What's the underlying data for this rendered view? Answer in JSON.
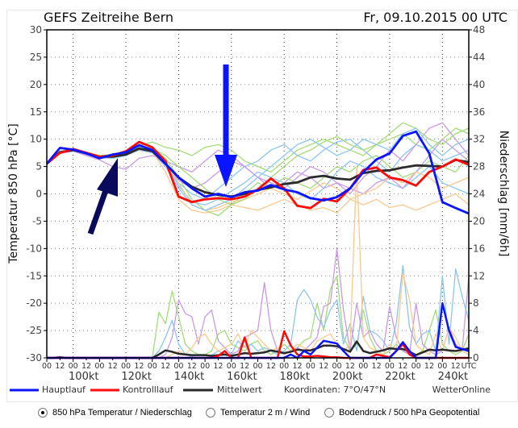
{
  "header": {
    "title": "GEFS Zeitreihe Bern",
    "run": "Fr, 09.10.2015 00 UTC"
  },
  "legend": {
    "main": "Hauptlauf",
    "control": "Kontrolllauf",
    "mean": "Mittelwert",
    "coords": "Koordinaten:  7°O/47°N",
    "brand": "WetterOnline"
  },
  "colors": {
    "main": "#0a14ff",
    "control": "#ff0a0a",
    "mean": "#2a2a2a",
    "arrow_blue": "#0a14ff",
    "arrow_navy": "#0a0a5a"
  },
  "radios": [
    {
      "label": "850 hPa Temperatur / Niederschlag",
      "selected": true
    },
    {
      "label": "Temperatur 2 m / Wind",
      "selected": false
    },
    {
      "label": "Bodendruck / 500 hPa Geopotential",
      "selected": false
    }
  ],
  "chart_data": {
    "type": "line",
    "title": "GEFS Zeitreihe Bern",
    "ylabel": "Temperatur 850 hPa [°C]",
    "y2label": "Niederschlag [mm/6h]",
    "ylim": [
      -30,
      30
    ],
    "y2lim": [
      0,
      48
    ],
    "yticks": [
      "30",
      "25",
      "20",
      "15",
      "10",
      "5",
      "0",
      "-5",
      "-10",
      "-15",
      "-20",
      "-25",
      "-30"
    ],
    "y2ticks": [
      "48",
      "44",
      "40",
      "36",
      "32",
      "28",
      "24",
      "20",
      "16",
      "12",
      "8",
      "4",
      "0"
    ],
    "xlim_days": [
      0,
      16
    ],
    "xticks_hours": [
      "00",
      "12"
    ],
    "x_end_label": "UTC",
    "wind_labels": [
      "100kt",
      "120kt",
      "140kt",
      "160kt",
      "180kt",
      "200kt",
      "220kt",
      "240kt"
    ],
    "x_step_days": 0.5,
    "temperature": {
      "main": [
        5.5,
        8.4,
        8.1,
        7.4,
        6.5,
        7.2,
        7.6,
        8.9,
        8.0,
        5.5,
        3.0,
        1.0,
        -0.5,
        0,
        -0.6,
        0.3,
        0.6,
        1.6,
        0.8,
        0.3,
        -0.8,
        -1.2,
        -0.6,
        1.0,
        4.0,
        6.3,
        7.4,
        10.6,
        11.4,
        7.4,
        -1.5,
        -2.6,
        -3.6
      ],
      "control": [
        5.5,
        7.5,
        8.2,
        7.5,
        6.8,
        7.0,
        7.8,
        9.5,
        8.5,
        6.0,
        -0.5,
        -1.5,
        -1.0,
        -0.8,
        -1.0,
        -0.5,
        0.8,
        2.8,
        1.0,
        -2.2,
        -2.6,
        -0.9,
        -1.4,
        1.0,
        4.4,
        4.8,
        3.0,
        2.5,
        1.5,
        4.0,
        5.0,
        6.3,
        5.3
      ],
      "mean": [
        5.5,
        7.6,
        8.0,
        7.4,
        6.8,
        6.8,
        7.2,
        8.3,
        7.8,
        5.5,
        3.0,
        1.3,
        0.3,
        -0.2,
        -0.5,
        0,
        0.7,
        1.2,
        1.8,
        2.1,
        3.0,
        3.3,
        2.8,
        2.6,
        3.8,
        4.2,
        4.3,
        4.8,
        5.2,
        5.1,
        5.0,
        6.2,
        5.8
      ],
      "members": [
        {
          "color": "#a3dc78",
          "values": [
            5.5,
            7.8,
            8.2,
            7.6,
            7.0,
            7.2,
            7.6,
            8.8,
            9.5,
            8.5,
            8.0,
            7.0,
            8.5,
            9.0,
            8.0,
            6.0,
            5.0,
            4.0,
            6.0,
            8.0,
            9.0,
            10.0,
            9.0,
            8.0,
            7.0,
            9.0,
            10.0,
            11.0,
            9.0,
            8.0,
            10.0,
            12.0,
            11.0
          ]
        },
        {
          "color": "#8cc6f0",
          "values": [
            5.5,
            7.5,
            7.9,
            7.2,
            6.6,
            6.5,
            7.0,
            8.0,
            7.5,
            5.0,
            2.0,
            0,
            -1.0,
            1.0,
            3.0,
            5.0,
            6.0,
            8.0,
            9.0,
            7.0,
            6.0,
            8.0,
            9.5,
            10.0,
            8.0,
            6.0,
            4.0,
            7.0,
            9.0,
            8.0,
            6.0,
            7.0,
            8.0
          ]
        },
        {
          "color": "#c99ae6",
          "values": [
            5.5,
            7.4,
            7.8,
            7.0,
            6.2,
            5.0,
            4.5,
            6.5,
            7.0,
            6.0,
            5.0,
            4.0,
            6.0,
            8.0,
            7.0,
            5.0,
            3.0,
            1.0,
            2.0,
            4.0,
            3.0,
            1.0,
            2.0,
            0,
            3.0,
            5.0,
            8.0,
            6.0,
            9.0,
            12.0,
            13.0,
            10.0,
            7.0
          ]
        },
        {
          "color": "#f9c98e",
          "values": [
            5.5,
            7.7,
            8.1,
            7.5,
            6.9,
            7.0,
            7.5,
            8.6,
            7.8,
            4.0,
            -1.0,
            -3.0,
            -3.5,
            -3.0,
            -2.0,
            -2.5,
            -3.0,
            -2.0,
            -1.0,
            -2.0,
            -3.0,
            -2.5,
            -3.5,
            -1.0,
            -2.0,
            -1.0,
            -2.5,
            -2.0,
            -3.0,
            -2.0,
            -1.0,
            0,
            -2.0
          ]
        },
        {
          "color": "#a3dc78",
          "values": [
            5.5,
            7.6,
            8.0,
            7.3,
            6.8,
            6.9,
            7.3,
            8.4,
            8.0,
            6.5,
            3.0,
            -1.0,
            -3.0,
            -4.0,
            -2.0,
            0,
            2.0,
            1.0,
            3.0,
            2.0,
            1.0,
            3.0,
            5.0,
            4.0,
            6.0,
            7.0,
            5.0,
            3.0,
            4.0,
            6.0,
            5.0,
            4.0,
            7.0
          ]
        },
        {
          "color": "#8cc6f0",
          "values": [
            5.5,
            7.6,
            8.0,
            7.3,
            6.7,
            6.6,
            7.0,
            8.2,
            7.6,
            5.5,
            1.5,
            -1.5,
            -2.0,
            -1.0,
            0.5,
            2.0,
            4.0,
            3.0,
            2.0,
            0,
            -1.0,
            1.0,
            4.0,
            6.0,
            5.0,
            3.0,
            2.0,
            1.0,
            3.0,
            5.0,
            2.0,
            1.0,
            0
          ]
        },
        {
          "color": "#c99ae6",
          "values": [
            5.5,
            7.7,
            8.0,
            7.4,
            6.6,
            6.8,
            7.1,
            8.1,
            7.7,
            5.5,
            2.5,
            1.0,
            2.0,
            4.0,
            6.0,
            5.0,
            3.0,
            2.0,
            1.0,
            3.0,
            5.0,
            4.0,
            2.0,
            1.0,
            0,
            2.0,
            3.0,
            1.0,
            4.0,
            7.0,
            10.0,
            8.0,
            6.0
          ]
        },
        {
          "color": "#f9c98e",
          "values": [
            5.5,
            7.6,
            7.9,
            7.3,
            6.7,
            6.8,
            7.2,
            8.3,
            7.9,
            5.8,
            2.0,
            -2.0,
            -3.0,
            -2.5,
            -1.5,
            -1.0,
            0,
            1.0,
            0,
            -1.0,
            0.5,
            2.0,
            1.0,
            -1.0,
            0,
            1.0,
            3.0,
            2.0,
            4.0,
            3.0,
            1.0,
            2.0,
            3.0
          ]
        },
        {
          "color": "#a3dc78",
          "values": [
            5.5,
            7.5,
            8.0,
            7.6,
            7.0,
            7.1,
            7.4,
            8.7,
            8.3,
            7.0,
            5.0,
            3.0,
            1.0,
            -1.0,
            -2.0,
            -1.0,
            1.0,
            3.0,
            5.0,
            7.0,
            8.0,
            9.5,
            10.5,
            9.0,
            8.0,
            9.0,
            11.0,
            13.0,
            12.0,
            10.0,
            9.0,
            11.0,
            12.0
          ]
        },
        {
          "color": "#8cc6f0",
          "values": [
            5.5,
            7.8,
            8.1,
            7.5,
            6.8,
            6.9,
            7.3,
            8.5,
            8.0,
            5.0,
            1.0,
            -2.0,
            -3.0,
            -2.0,
            -1.0,
            1.0,
            3.0,
            5.0,
            7.0,
            9.0,
            10.0,
            8.5,
            7.0,
            8.0,
            10.0,
            9.0,
            8.0,
            11.0,
            12.0,
            9.0,
            7.0,
            9.0,
            10.0
          ]
        }
      ]
    },
    "precip_step_days": 0.25,
    "precipitation": {
      "main": [
        0,
        0,
        0,
        0,
        0,
        0,
        0,
        0,
        0,
        0,
        0,
        0,
        0,
        0,
        0,
        0,
        0,
        0,
        0,
        0,
        0,
        0,
        0,
        0,
        0,
        0,
        0,
        0,
        0,
        0,
        0,
        0,
        0,
        0,
        0,
        0,
        0,
        0.5,
        0,
        1.0,
        0.5,
        1.5,
        2.5,
        2.3,
        2.1,
        1.0,
        0,
        0,
        0,
        0,
        0,
        0,
        0,
        1.0,
        2.3,
        1.0,
        0,
        0,
        0,
        0,
        8.0,
        4.0,
        1.6,
        1.3,
        1.0
      ],
      "control": [
        0,
        0,
        0,
        0,
        0,
        0,
        0,
        0,
        0,
        0,
        0,
        0,
        0,
        0,
        0,
        0,
        0,
        0,
        0,
        0,
        0,
        0,
        0,
        0,
        0,
        0,
        0.3,
        1.0,
        0,
        0,
        3.0,
        0,
        0,
        0,
        0,
        0,
        3.9,
        1.8,
        0.5,
        0.2,
        0.2,
        0.3,
        0.2,
        0.1,
        0.1,
        0,
        0,
        0,
        0,
        0,
        0.5,
        0.3,
        0.1,
        1.0,
        2.0,
        0.5,
        0,
        0,
        0,
        0,
        0,
        0,
        0,
        0,
        0
      ],
      "mean": [
        0,
        0,
        0.1,
        0,
        0,
        0,
        0,
        0,
        0,
        0,
        0,
        0,
        0,
        0,
        0,
        0,
        0,
        0.5,
        1.1,
        0.9,
        0.6,
        0.5,
        0.4,
        0.4,
        0.4,
        0.3,
        0.4,
        0.5,
        0.3,
        0.5,
        0.7,
        0.6,
        0.7,
        0.8,
        1.1,
        0.9,
        0.7,
        0.9,
        1.2,
        1.1,
        1.1,
        1.4,
        1.8,
        1.8,
        1.7,
        1.3,
        0.9,
        2.4,
        1.0,
        0.7,
        0.9,
        1.1,
        1.4,
        1.3,
        1.3,
        0.9,
        0.4,
        0.8,
        1.2,
        1.1,
        1.2,
        1.1,
        1.0,
        1.2,
        1.4
      ],
      "members": [
        {
          "color": "#a3dc78",
          "values": [
            0,
            0,
            0,
            0,
            0,
            0,
            0,
            0,
            0,
            0,
            0,
            0,
            0,
            0,
            0,
            0,
            0,
            6.7,
            5.0,
            9.8,
            6.0,
            2.0,
            1.0,
            0.5,
            0.5,
            1.0,
            3.5,
            4.0,
            2.0,
            1.5,
            1.0,
            2.0,
            2.5,
            1.0,
            0.5,
            1.0,
            2.0,
            1.0,
            1.5,
            2.5,
            3.0,
            8.0,
            4.0,
            10.0,
            12.0,
            3.0,
            1.0,
            2.0,
            7.0,
            3.0,
            1.0,
            0.5,
            1.0,
            2.0,
            1.0,
            0.5,
            0.5,
            1.0,
            4.0,
            7.0,
            2.0,
            1.0,
            0.5,
            1.0,
            3.5
          ]
        },
        {
          "color": "#8cc6f0",
          "values": [
            0,
            0,
            0,
            0,
            0,
            0,
            0,
            0,
            0,
            0,
            0,
            0,
            0,
            0,
            0,
            0,
            0,
            1.0,
            3.0,
            5.5,
            2.0,
            0.5,
            0.2,
            0.5,
            0.3,
            0.4,
            1.0,
            0.5,
            0.5,
            2.5,
            1.5,
            2.0,
            1.0,
            1.5,
            1.0,
            0.5,
            1.0,
            2.0,
            8.5,
            10.0,
            8.5,
            6.0,
            4.5,
            7.0,
            8.5,
            2.0,
            5.0,
            1.0,
            9.0,
            4.0,
            3.5,
            2.5,
            1.0,
            5.0,
            13.5,
            4.5,
            2.0,
            3.5,
            4.0,
            1.0,
            12.0,
            2.0,
            13.0,
            9.0,
            5.5
          ]
        },
        {
          "color": "#c99ae6",
          "values": [
            0,
            0,
            0,
            0,
            0,
            0,
            0,
            0,
            0,
            0,
            0,
            0,
            0,
            0,
            0,
            0,
            0,
            0,
            0.5,
            3.0,
            8.5,
            6.5,
            6.0,
            2.0,
            6.0,
            7.0,
            2.5,
            1.5,
            0.5,
            1.0,
            3.0,
            3.5,
            4.0,
            11.0,
            4.0,
            1.0,
            0.5,
            1.0,
            1.5,
            1.0,
            2.0,
            3.0,
            7.5,
            8.0,
            16.0,
            7.0,
            1.0,
            8.0,
            3.0,
            4.0,
            2.0,
            1.0,
            7.5,
            3.0,
            1.0,
            0.5,
            8.0,
            2.0,
            1.0,
            0.5,
            1.0,
            4.5,
            2.0,
            1.0,
            12.0
          ]
        },
        {
          "color": "#f9c98e",
          "values": [
            0,
            0,
            0,
            0,
            0,
            0,
            0,
            0,
            0,
            0,
            0,
            0,
            0,
            0,
            0,
            0,
            0,
            0,
            0,
            0.5,
            1.0,
            0.5,
            1.5,
            3.0,
            3.5,
            2.0,
            1.0,
            1.5,
            2.0,
            3.5,
            1.5,
            4.0,
            3.0,
            2.0,
            1.0,
            1.5,
            0.5,
            1.0,
            2.0,
            1.5,
            1.0,
            2.5,
            3.0,
            3.5,
            2.0,
            1.0,
            2.0,
            28.0,
            3.0,
            1.5,
            1.0,
            0.5,
            2.0,
            1.0,
            12.5,
            8.5,
            2.0,
            1.0,
            0.5,
            3.5,
            1.0,
            4.5,
            3.0,
            1.0,
            0.5
          ]
        }
      ]
    }
  }
}
